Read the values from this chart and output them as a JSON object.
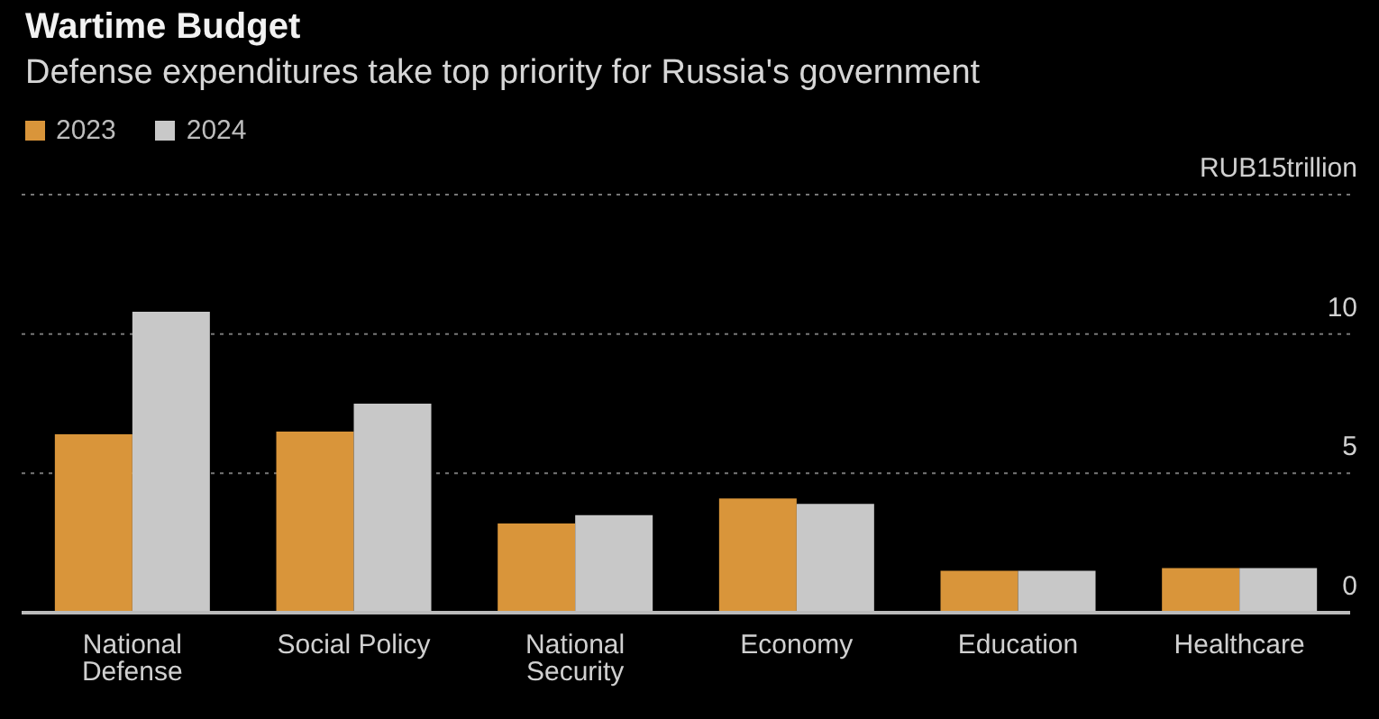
{
  "chart_data": {
    "type": "bar",
    "title": "Wartime Budget",
    "subtitle": "Defense expenditures take top priority for Russia's government",
    "categories": [
      "National Defense",
      "Social Policy",
      "National Security",
      "Economy",
      "Education",
      "Healthcare"
    ],
    "series": [
      {
        "name": "2023",
        "color": "#d9953a",
        "values": [
          6.4,
          6.5,
          3.2,
          4.1,
          1.5,
          1.6
        ]
      },
      {
        "name": "2024",
        "color": "#c8c8c8",
        "values": [
          10.8,
          7.5,
          3.5,
          3.9,
          1.5,
          1.6
        ]
      }
    ],
    "ylim": [
      0,
      15
    ],
    "yticks": [
      0,
      5,
      10,
      {
        "value": 15,
        "label": "RUB15trillion"
      }
    ],
    "grid": "y",
    "legend": "top left"
  }
}
